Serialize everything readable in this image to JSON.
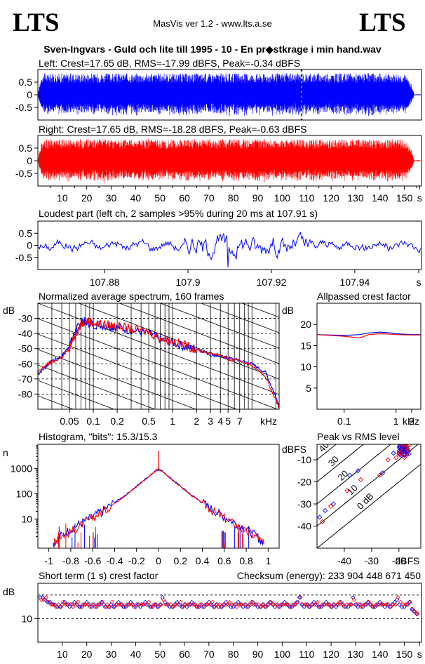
{
  "header": {
    "logo_left": "LTS",
    "logo_right": "LTS",
    "app": "MasVis ver 1.2 - www.lts.a.se",
    "file_title": "Sven-Ingvars - Guld och lite till 1995 - 10 - En pr◆stkrage i min hand.wav"
  },
  "chart_data": [
    {
      "id": "left-waveform",
      "type": "line",
      "title": "Left: Crest=17.65 dB, RMS=-17.99 dBFS, Peak=-0.34 dBFS",
      "color": "#0000ff",
      "ylim": [
        -1,
        1
      ],
      "yticks": [
        "0.5",
        "0",
        "-0.5"
      ],
      "xlim": [
        0,
        157
      ],
      "marker_at": 107.91,
      "envelope": [
        [
          0,
          0
        ],
        [
          1.5,
          0.85
        ],
        [
          150,
          0.85
        ],
        [
          153,
          0.4
        ],
        [
          154,
          0.02
        ],
        [
          157,
          0.02
        ]
      ]
    },
    {
      "id": "right-waveform",
      "type": "line",
      "title": "Right: Crest=17.65 dB, RMS=-18.28 dBFS, Peak=-0.63 dBFS",
      "color": "#ff0000",
      "ylim": [
        -1,
        1
      ],
      "yticks": [
        "0.5",
        "0",
        "-0.5"
      ],
      "xlim": [
        0,
        157
      ],
      "xticks": [
        "10",
        "20",
        "30",
        "40",
        "50",
        "60",
        "70",
        "80",
        "90",
        "100",
        "110",
        "120",
        "130",
        "140",
        "150",
        "s"
      ]
    },
    {
      "id": "loudest-part",
      "type": "line",
      "title": "Loudest part (left  ch, 2 samples >95% during 20 ms at 107.91 s)",
      "color": "#0000ff",
      "ylim": [
        -1,
        1
      ],
      "yticks": [
        "0.5",
        "0",
        "-0.5"
      ],
      "xlim": [
        107.864,
        107.956
      ],
      "xticks": [
        "107.88",
        "107.9",
        "107.92",
        "107.94",
        "s"
      ]
    },
    {
      "id": "average-spectrum",
      "type": "line",
      "title": "Normalized average spectrum, 160 frames",
      "ylabel": "dB",
      "xlabel": "kHz",
      "xscale": "log",
      "xlim": [
        0.02,
        22
      ],
      "ylim": [
        -90,
        -20
      ],
      "yticks": [
        "-30",
        "-40",
        "-50",
        "-60",
        "-70",
        "-80"
      ],
      "xticks": [
        "0.05",
        "0.1",
        "0.2",
        "0.5",
        "1",
        "2",
        "3",
        "4",
        "5",
        "7",
        "kHz"
      ],
      "series": [
        {
          "color": "#0000ff",
          "x": [
            0.02,
            0.025,
            0.03,
            0.04,
            0.05,
            0.06,
            0.07,
            0.08,
            0.1,
            0.15,
            0.2,
            0.3,
            0.5,
            0.7,
            1,
            1.5,
            2,
            3,
            4,
            5,
            7,
            10,
            15,
            20,
            22
          ],
          "y": [
            -67,
            -62,
            -58,
            -55,
            -48,
            -38,
            -33,
            -32,
            -34,
            -35,
            -36,
            -38,
            -40,
            -44,
            -46,
            -49,
            -50,
            -54,
            -55,
            -56,
            -58,
            -60,
            -66,
            -82,
            -88
          ]
        },
        {
          "color": "#ff0000",
          "x": [
            0.02,
            0.025,
            0.03,
            0.04,
            0.05,
            0.06,
            0.07,
            0.08,
            0.1,
            0.15,
            0.2,
            0.3,
            0.5,
            0.7,
            1,
            1.5,
            2,
            3,
            4,
            5,
            7,
            10,
            15,
            20,
            22
          ],
          "y": [
            -66,
            -61,
            -59,
            -56,
            -50,
            -40,
            -34,
            -31,
            -33,
            -34,
            -35,
            -37,
            -39,
            -43,
            -45,
            -48,
            -51,
            -53,
            -54,
            -57,
            -58,
            -61,
            -69,
            -84,
            -89
          ]
        }
      ]
    },
    {
      "id": "allpassed-crest",
      "type": "line",
      "title": "Allpassed crest factor",
      "ylabel": "dB",
      "xscale": "log",
      "xlim": [
        0.03,
        3
      ],
      "ylim": [
        0,
        25
      ],
      "yticks": [
        "20",
        "15",
        "10",
        "5"
      ],
      "xticks": [
        "0.1",
        "1",
        "2",
        "kHz"
      ],
      "series": [
        {
          "color": "#0000ff",
          "x": [
            0.03,
            0.1,
            0.2,
            0.3,
            0.5,
            0.8,
            1,
            2,
            3
          ],
          "y": [
            17.6,
            17.4,
            17.6,
            18.0,
            18.2,
            18.0,
            17.8,
            17.6,
            17.6
          ]
        },
        {
          "color": "#ff0000",
          "x": [
            0.03,
            0.1,
            0.2,
            0.3,
            0.5,
            0.8,
            1,
            2,
            3
          ],
          "y": [
            17.6,
            17.2,
            16.8,
            17.6,
            17.8,
            17.7,
            17.6,
            17.5,
            17.5
          ]
        }
      ]
    },
    {
      "id": "histogram",
      "type": "line",
      "title": "Histogram, \"bits\": 15.3/15.3",
      "ylabel": "n",
      "yscale": "log",
      "ylim": [
        0.7,
        9000
      ],
      "xlim": [
        -1.1,
        1.1
      ],
      "yticks": [
        "1000",
        "100",
        "10"
      ],
      "xticks": [
        "-1",
        "-0.8",
        "-0.6",
        "-0.4",
        "-0.2",
        "0",
        "0.2",
        "0.4",
        "0.6",
        "0.8",
        "1"
      ],
      "peak": 5000,
      "series": [
        {
          "color": "#0000ff",
          "x": [
            -0.96,
            -0.9,
            -0.8,
            -0.7,
            -0.6,
            -0.5,
            -0.4,
            -0.3,
            -0.2,
            -0.1,
            -0.03,
            0,
            0.03,
            0.1,
            0.2,
            0.3,
            0.4,
            0.5,
            0.6,
            0.7,
            0.8,
            0.9,
            0.96
          ],
          "y": [
            1,
            2,
            4,
            7,
            12,
            22,
            45,
            90,
            200,
            450,
            800,
            900,
            800,
            450,
            200,
            90,
            45,
            22,
            12,
            7,
            4,
            2,
            1
          ]
        },
        {
          "color": "#ff0000",
          "x": [
            -0.96,
            -0.9,
            -0.8,
            -0.7,
            -0.6,
            -0.5,
            -0.4,
            -0.3,
            -0.2,
            -0.1,
            -0.03,
            0,
            0.03,
            0.1,
            0.2,
            0.3,
            0.4,
            0.5,
            0.6,
            0.7,
            0.8,
            0.9,
            0.96
          ],
          "y": [
            1,
            2,
            3,
            6,
            11,
            20,
            42,
            85,
            190,
            430,
            780,
            950,
            780,
            430,
            190,
            85,
            42,
            20,
            11,
            6,
            3,
            2,
            1
          ]
        }
      ]
    },
    {
      "id": "peak-vs-rms",
      "type": "scatter",
      "title": "Peak vs RMS level",
      "ylabel": "dBFS",
      "xlabel": "dBFS",
      "xlim": [
        -50,
        -12
      ],
      "ylim": [
        -50,
        -3
      ],
      "yticks": [
        "-10",
        "-20",
        "-30",
        "-40"
      ],
      "xticks": [
        "-40",
        "-30",
        "-20",
        "dBFS"
      ],
      "crest_lines": [
        "40",
        "30",
        "20",
        "10",
        "0 dB"
      ],
      "series": [
        {
          "color": "#0000ff",
          "x": [
            -49,
            -47,
            -44,
            -38,
            -35,
            -26,
            -22,
            -20,
            -19,
            -18,
            -17,
            -18,
            -19
          ],
          "y": [
            -36,
            -33,
            -30,
            -17,
            -15,
            -16,
            -7,
            -6,
            -5,
            -4,
            -5,
            -6,
            -8
          ]
        },
        {
          "color": "#ff0000",
          "x": [
            -48,
            -45,
            -39,
            -34,
            -27,
            -24,
            -21,
            -20,
            -19,
            -18,
            -17,
            -17,
            -18,
            -19,
            -18
          ],
          "y": [
            -38,
            -31,
            -24,
            -19,
            -17,
            -10,
            -9,
            -7,
            -6,
            -5,
            -4,
            -6,
            -8,
            -7,
            -9
          ]
        }
      ]
    },
    {
      "id": "short-term-crest",
      "type": "scatter",
      "title": "Short term (1 s) crest factor",
      "checksum": "Checksum (energy):  233 904 448 671 450",
      "ylabel": "dB",
      "xlim": [
        0,
        157
      ],
      "ylim": [
        0,
        25
      ],
      "yticks": [
        "10"
      ],
      "ref_lines": [
        10,
        20
      ],
      "xticks": [
        "10",
        "20",
        "30",
        "40",
        "50",
        "60",
        "70",
        "80",
        "90",
        "100",
        "110",
        "120",
        "130",
        "140",
        "150",
        "s"
      ],
      "series": [
        {
          "color": "#0000ff",
          "values": [
            19,
            19,
            18,
            17,
            17,
            16,
            16,
            15,
            15,
            16,
            17,
            16,
            15,
            16,
            17,
            16,
            15,
            15,
            16,
            17,
            16,
            15,
            16,
            15,
            16,
            17,
            16,
            15,
            15,
            16,
            15,
            16,
            17,
            16,
            15,
            15,
            16,
            17,
            16,
            15,
            16,
            15,
            16,
            17,
            16,
            15,
            15,
            16,
            15,
            16,
            19,
            17,
            16,
            15,
            15,
            16,
            17,
            16,
            15,
            16,
            15,
            16,
            17,
            16,
            15,
            15,
            16,
            15,
            16,
            17,
            16,
            15,
            16,
            15,
            15,
            16,
            17,
            16,
            15,
            15,
            16,
            17,
            16,
            15,
            16,
            15,
            16,
            17,
            16,
            15,
            15,
            16,
            15,
            16,
            17,
            16,
            15,
            16,
            15,
            16,
            17,
            16,
            15,
            15,
            16,
            17,
            19,
            16,
            15,
            16,
            15,
            16,
            17,
            16,
            15,
            15,
            16,
            17,
            16,
            15,
            16,
            15,
            16,
            17,
            16,
            15,
            15,
            16,
            19,
            16,
            15,
            16,
            15,
            16,
            17,
            16,
            15,
            15,
            16,
            17,
            16,
            15,
            16,
            15,
            16,
            17,
            18,
            16,
            15,
            15,
            16,
            17,
            14,
            13,
            12
          ]
        },
        {
          "color": "#ff0000",
          "values": [
            18,
            18,
            19,
            17,
            16,
            16,
            15,
            16,
            15,
            17,
            16,
            16,
            16,
            15,
            16,
            17,
            15,
            16,
            16,
            16,
            15,
            16,
            15,
            16,
            16,
            17,
            15,
            16,
            15,
            17,
            15,
            16,
            16,
            16,
            15,
            16,
            16,
            16,
            15,
            16,
            16,
            16,
            16,
            16,
            17,
            15,
            16,
            16,
            15,
            16,
            18,
            16,
            16,
            16,
            15,
            16,
            16,
            17,
            15,
            16,
            16,
            16,
            16,
            16,
            15,
            16,
            15,
            16,
            16,
            16,
            17,
            15,
            16,
            16,
            15,
            16,
            16,
            17,
            16,
            16,
            15,
            16,
            16,
            16,
            15,
            16,
            17,
            16,
            16,
            16,
            15,
            16,
            15,
            16,
            17,
            16,
            16,
            15,
            16,
            16,
            16,
            16,
            15,
            16,
            16,
            17,
            19,
            16,
            16,
            16,
            15,
            16,
            16,
            17,
            15,
            16,
            16,
            16,
            16,
            15,
            16,
            16,
            17,
            16,
            15,
            16,
            16,
            16,
            18,
            16,
            16,
            15,
            16,
            16,
            17,
            16,
            15,
            16,
            16,
            16,
            16,
            16,
            16,
            15,
            16,
            16,
            19,
            17,
            16,
            16,
            16,
            17,
            14,
            13,
            12
          ]
        }
      ]
    }
  ]
}
